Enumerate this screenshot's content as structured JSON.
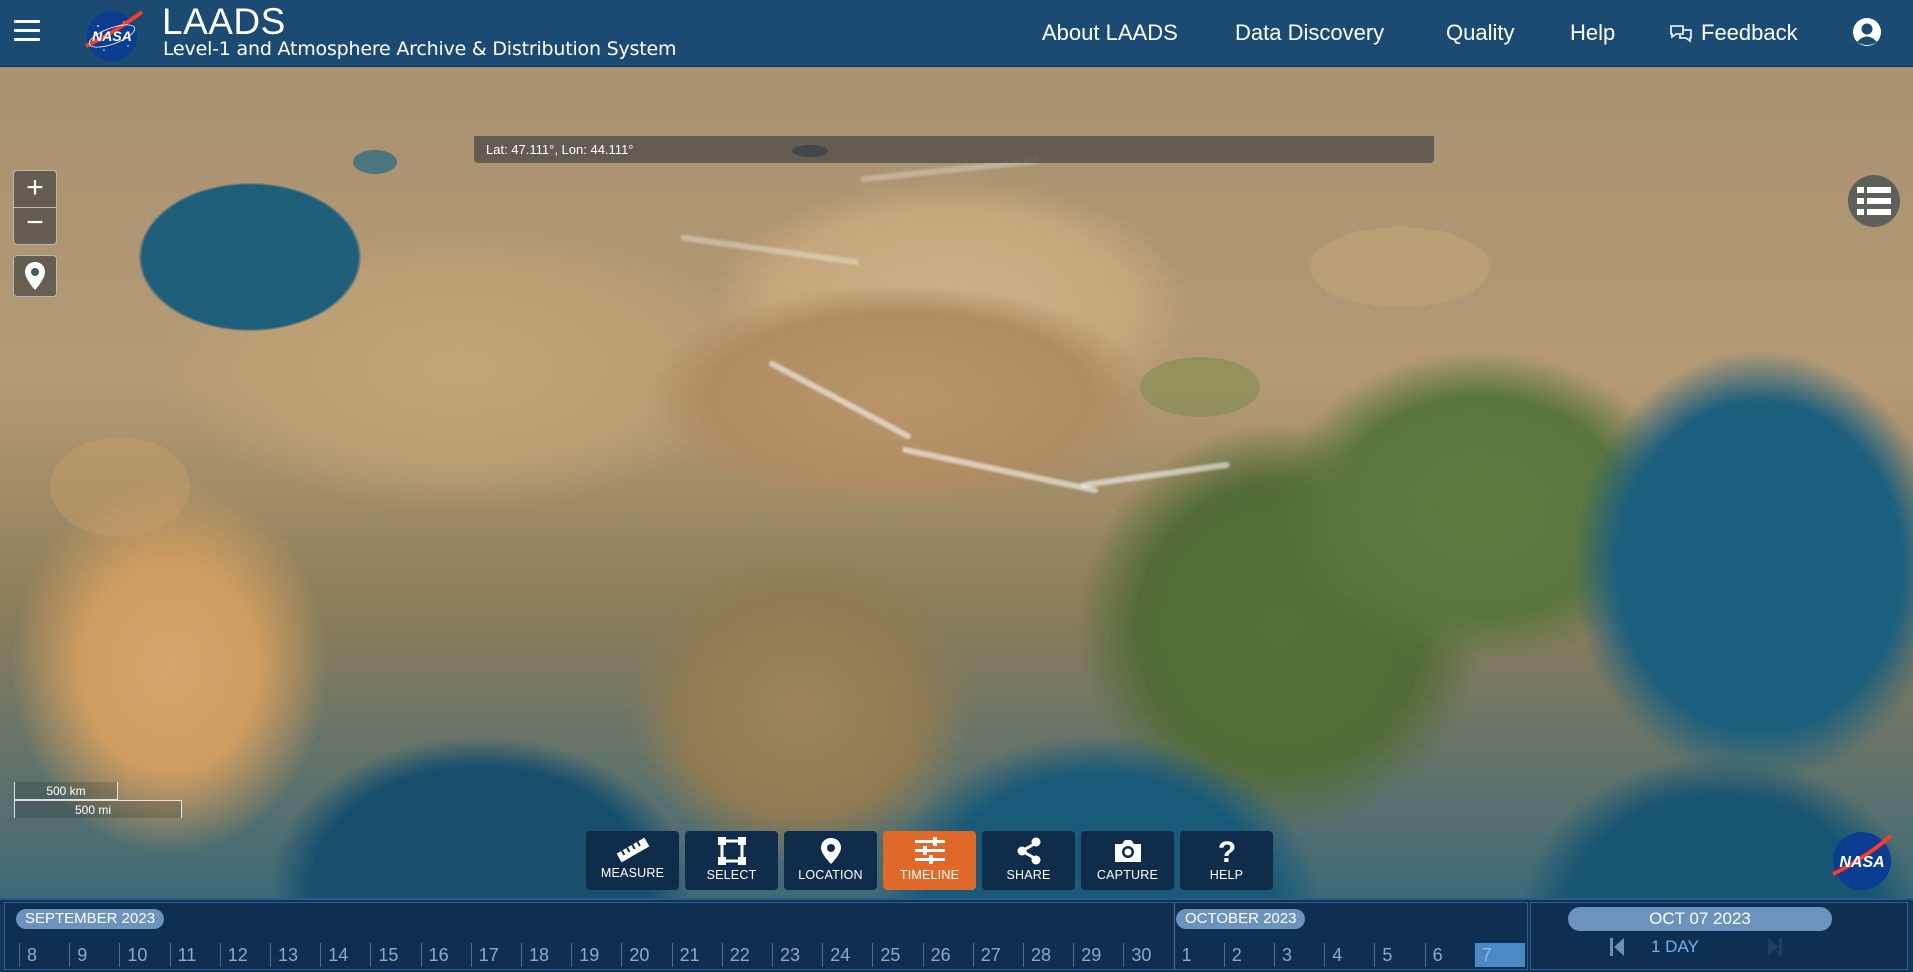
{
  "header": {
    "title": "LAADS",
    "subtitle": "Level-1 and Atmosphere Archive & Distribution System",
    "nav": [
      "About LAADS",
      "Data Discovery",
      "Quality",
      "Help"
    ],
    "feedback_label": "Feedback"
  },
  "map": {
    "coordinates": "Lat: 47.111°, Lon: 44.111°",
    "zoom_in": "+",
    "zoom_out": "−",
    "scale_km": "500 km",
    "scale_mi": "500 mi"
  },
  "toolbar": {
    "tools": [
      "MEASURE",
      "SELECT",
      "LOCATION",
      "TIMELINE",
      "SHARE",
      "CAPTURE",
      "HELP"
    ],
    "active": "TIMELINE"
  },
  "timeline": {
    "month1": "SEPTEMBER 2023",
    "month2": "OCTOBER 2023",
    "sept_days": [
      "8",
      "9",
      "10",
      "11",
      "12",
      "13",
      "14",
      "15",
      "16",
      "17",
      "18",
      "19",
      "20",
      "21",
      "22",
      "23",
      "24",
      "25",
      "26",
      "27",
      "28",
      "29",
      "30"
    ],
    "oct_days": [
      "1",
      "2",
      "3",
      "4",
      "5",
      "6",
      "7"
    ],
    "selected_day": "7",
    "current_date": "OCT 07 2023",
    "interval": "1 DAY"
  },
  "colors": {
    "header_bg": "#1b4a73",
    "active_tool": "#e0692a",
    "timeline_bg": "#12345a",
    "pill": "#6b93bd"
  }
}
